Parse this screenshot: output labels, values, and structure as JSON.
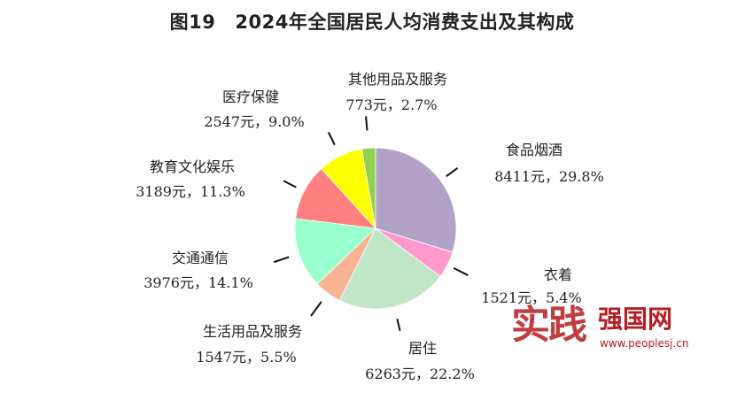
{
  "title": {
    "figure": "图19",
    "text": "2024年全国居民人均消费支出及其构成"
  },
  "chart_data": {
    "type": "pie",
    "title": "2024年全国居民人均消费支出及其构成",
    "start_angle_deg": 0,
    "direction": "clockwise",
    "slices": [
      {
        "name": "食品烟酒",
        "value": 8411,
        "percent": 29.8,
        "label": "8411元，29.8%",
        "color": "#b3a2c8"
      },
      {
        "name": "衣着",
        "value": 1521,
        "percent": 5.4,
        "label": "1521元，5.4%",
        "color": "#ff99cc"
      },
      {
        "name": "居住",
        "value": 6263,
        "percent": 22.2,
        "label": "6263元，22.2%",
        "color": "#c2e6c8"
      },
      {
        "name": "生活用品及服务",
        "value": 1547,
        "percent": 5.5,
        "label": "1547元，5.5%",
        "color": "#f9b494"
      },
      {
        "name": "交通通信",
        "value": 3976,
        "percent": 14.1,
        "label": "3976元，14.1%",
        "color": "#99ffcc"
      },
      {
        "name": "教育文化娱乐",
        "value": 3189,
        "percent": 11.3,
        "label": "3189元，11.3%",
        "color": "#ff8080"
      },
      {
        "name": "医疗保健",
        "value": 2547,
        "percent": 9.0,
        "label": "2547元，9.0%",
        "color": "#ffff00"
      },
      {
        "name": "其他用品及服务",
        "value": 773,
        "percent": 2.7,
        "label": "773元，2.7%",
        "color": "#92d050"
      }
    ]
  },
  "watermark": {
    "logo_text": "强国网",
    "logo_calligraphy": "实践",
    "url": "www.peoplesj.cn"
  }
}
